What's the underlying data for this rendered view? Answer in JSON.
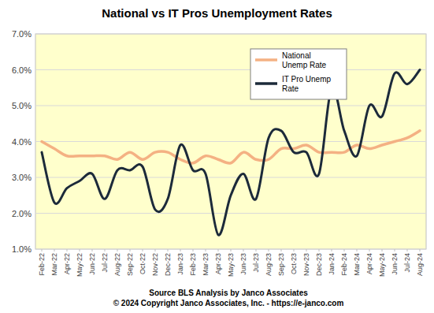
{
  "chart_data": {
    "type": "line",
    "title": "National vs IT Pros Unemployment Rates",
    "annotations": [
      "Source BLS Analysis by Janco Associates",
      "© 2024 Copyright Janco Associates, Inc. - https://e-janco.com"
    ],
    "categories": [
      "Feb-22",
      "Mar-22",
      "Apr-22",
      "May-22",
      "Jun-22",
      "Jul-22",
      "Aug-22",
      "Sep-22",
      "Oct-22",
      "Nov-22",
      "Dec-22",
      "Jan-23",
      "Feb-23",
      "Mar-23",
      "Apr-23",
      "May-23",
      "Jun-23",
      "Jul-23",
      "Aug-23",
      "Sep-23",
      "Oct-23",
      "Nov-23",
      "Dec-23",
      "Jan-24",
      "Feb-24",
      "Mar-24",
      "Apr-24",
      "May-24",
      "Jun-24",
      "Jul-24",
      "Aug-24"
    ],
    "series": [
      {
        "name": "National Unemp Rate",
        "color": "#f4b183",
        "values": [
          4.0,
          3.8,
          3.6,
          3.6,
          3.6,
          3.6,
          3.5,
          3.7,
          3.5,
          3.7,
          3.7,
          3.5,
          3.4,
          3.6,
          3.5,
          3.4,
          3.7,
          3.5,
          3.5,
          3.8,
          3.8,
          3.9,
          3.7,
          3.7,
          3.7,
          3.9,
          3.8,
          3.9,
          4.0,
          4.1,
          4.3
        ]
      },
      {
        "name": "IT Pro Unemp Rate",
        "color": "#1c2a3a",
        "values": [
          3.7,
          2.3,
          2.7,
          2.9,
          3.1,
          2.4,
          3.2,
          3.2,
          3.3,
          2.1,
          2.4,
          3.9,
          3.2,
          3.1,
          1.4,
          2.5,
          3.1,
          2.4,
          4.1,
          4.3,
          3.7,
          3.7,
          3.1,
          5.5,
          4.3,
          3.6,
          5.0,
          4.7,
          5.9,
          5.6,
          6.0
        ]
      }
    ],
    "ylim": [
      1,
      7
    ],
    "yticks": [
      {
        "value": 1,
        "label": "1.0%"
      },
      {
        "value": 2,
        "label": "2.0%"
      },
      {
        "value": 3,
        "label": "3.0%"
      },
      {
        "value": 4,
        "label": "4.0%"
      },
      {
        "value": 5,
        "label": "5.0%"
      },
      {
        "value": 6,
        "label": "6.0%"
      },
      {
        "value": 7,
        "label": "7.0%"
      }
    ],
    "grid": true,
    "legend": "top-right",
    "line_style": "smooth"
  }
}
